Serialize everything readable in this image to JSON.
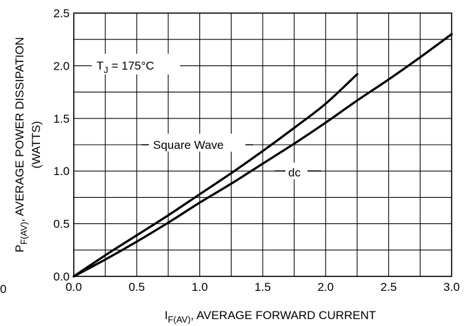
{
  "chart_data": {
    "type": "line",
    "x_axis": {
      "label_prefix": "I",
      "label_subscript": "F(AV)",
      "label_rest": ", AVERAGE FORWARD CURRENT",
      "range": [
        0,
        3.0
      ],
      "ticks": [
        0.0,
        0.5,
        1.0,
        1.5,
        2.0,
        2.5,
        3.0
      ],
      "tick_labels": [
        "0.0",
        "0.5",
        "1.0",
        "1.5",
        "2.0",
        "2.5",
        "3.0"
      ],
      "grid_step": 0.25
    },
    "y_axis": {
      "label_prefix": "P",
      "label_subscript": "F(AV)",
      "label_rest": ", AVERAGE POWER DISSIPATION",
      "label_line2": "(WATTS)",
      "range": [
        0,
        2.5
      ],
      "ticks": [
        0.0,
        0.5,
        1.0,
        1.5,
        2.0,
        2.5
      ],
      "tick_labels": [
        "0.0",
        "0.5",
        "1.0",
        "1.5",
        "2.0",
        "2.5"
      ],
      "grid_step": 0.25
    },
    "stray_label": "0",
    "grid": true,
    "annotations": {
      "tj_prefix": "T",
      "tj_subscript": "J",
      "tj_rest": " = 175°C"
    },
    "series": [
      {
        "name": "Square Wave",
        "x": [
          0.0,
          0.25,
          0.5,
          0.75,
          1.0,
          1.25,
          1.5,
          1.75,
          2.0,
          2.25
        ],
        "y": [
          0.0,
          0.2,
          0.39,
          0.58,
          0.78,
          0.98,
          1.19,
          1.41,
          1.64,
          1.92
        ]
      },
      {
        "name": "dc",
        "x": [
          0.0,
          0.25,
          0.5,
          0.75,
          1.0,
          1.25,
          1.5,
          1.75,
          2.0,
          2.25,
          2.5,
          2.75,
          3.0
        ],
        "y": [
          0.0,
          0.16,
          0.33,
          0.51,
          0.7,
          0.88,
          1.07,
          1.26,
          1.46,
          1.67,
          1.87,
          2.08,
          2.3
        ]
      }
    ]
  }
}
